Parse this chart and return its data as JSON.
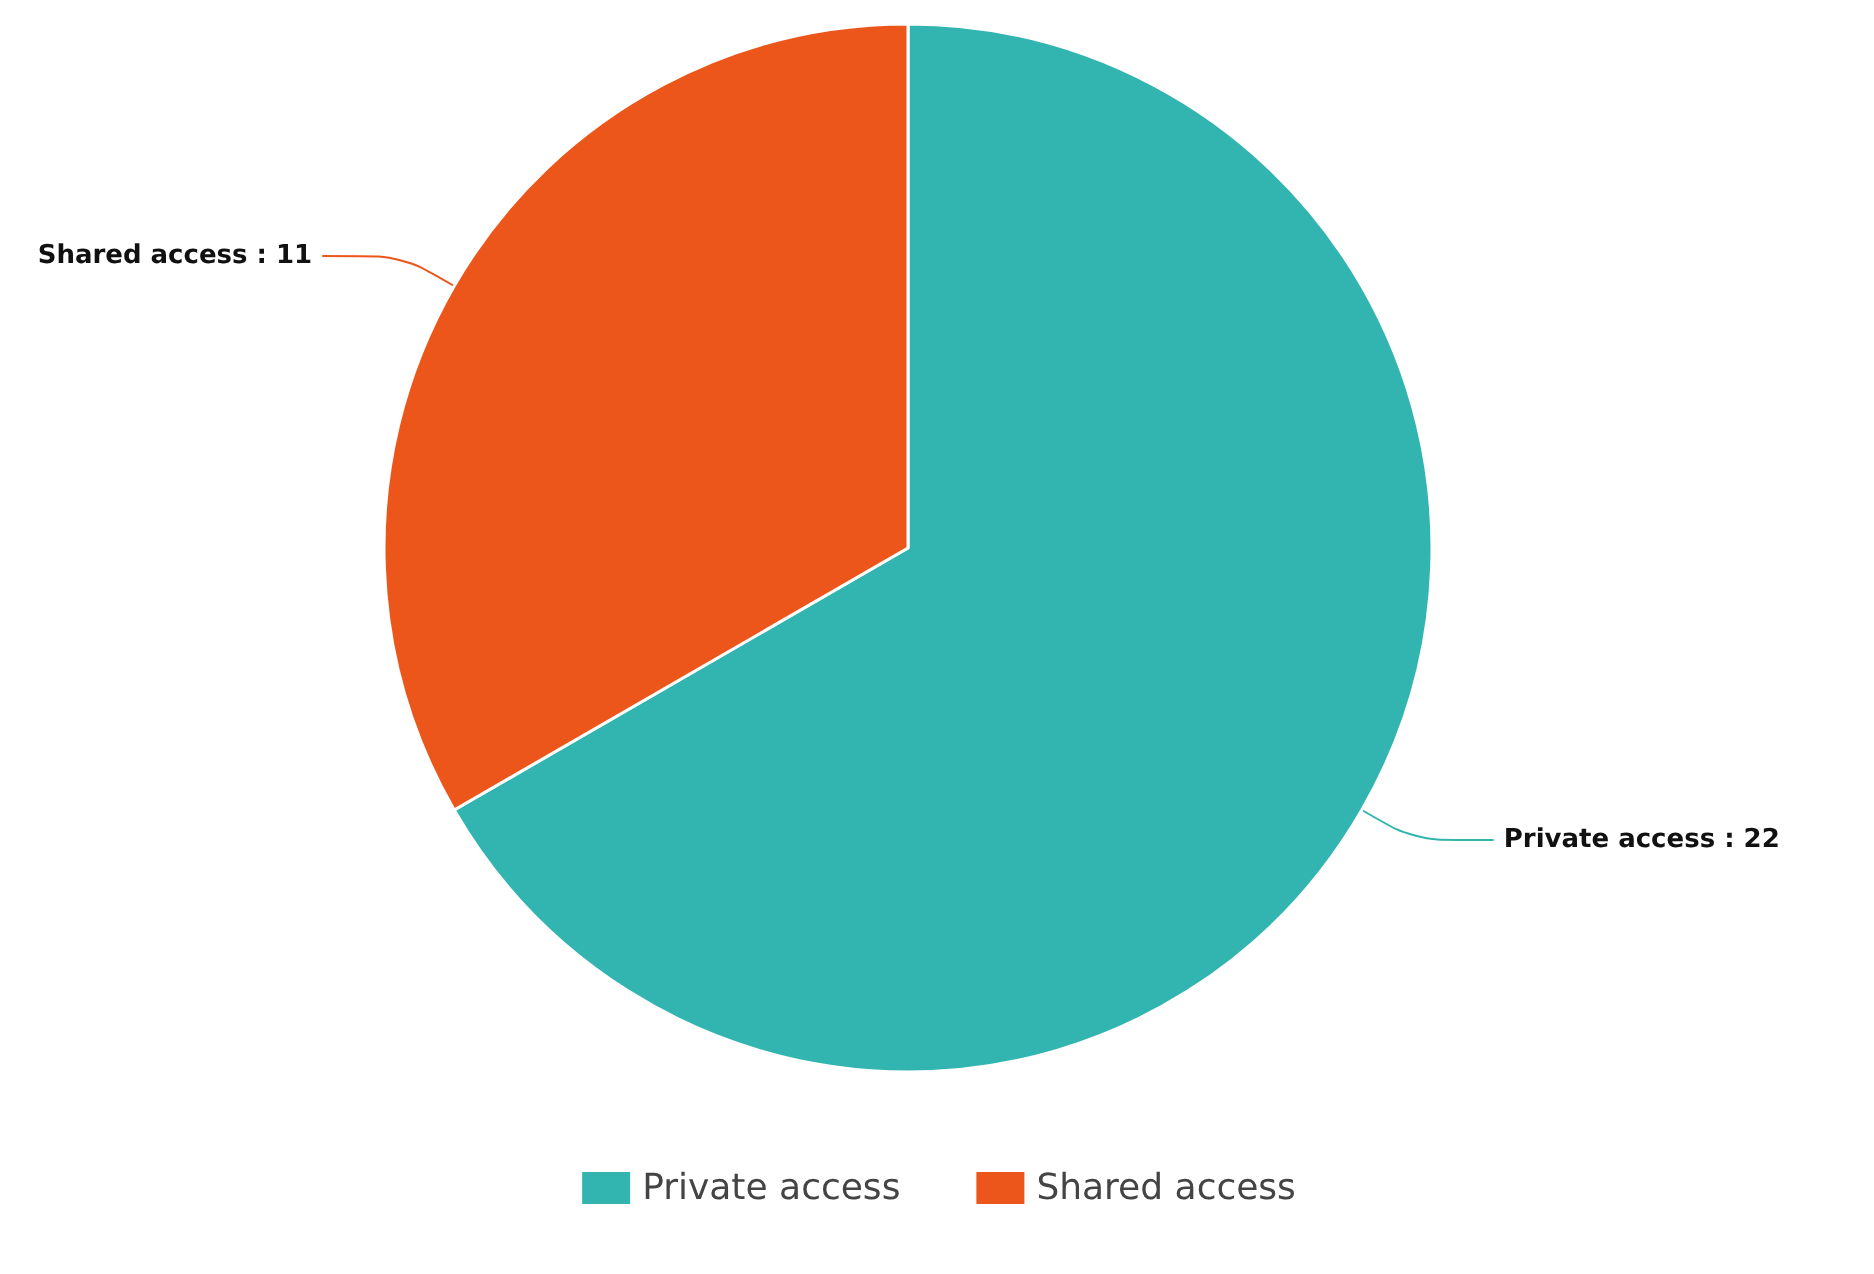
{
  "chart_data": {
    "type": "pie",
    "categories": [
      "Private access",
      "Shared access"
    ],
    "values": [
      22,
      11
    ],
    "value_labels": [
      "Private access : 22",
      "Shared access : 11"
    ],
    "colors": [
      "#32b5b0",
      "#ec561b"
    ],
    "legend": "bottom"
  }
}
